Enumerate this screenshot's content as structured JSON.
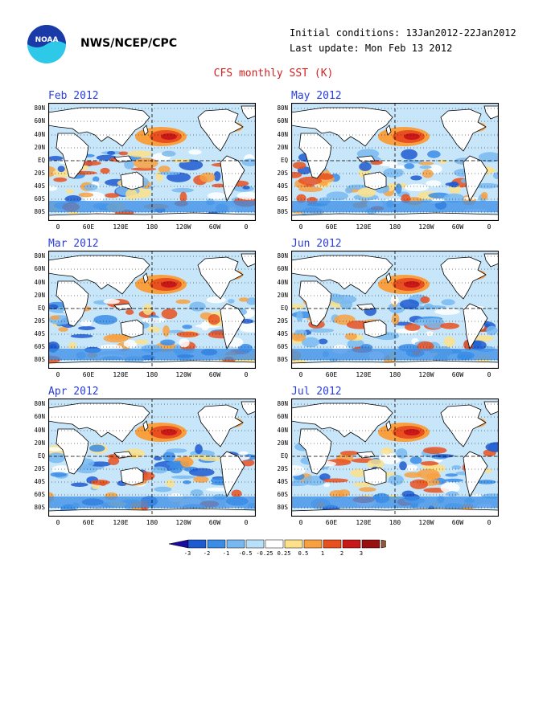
{
  "header": {
    "agency": "NWS/NCEP/CPC",
    "initial_conditions": "Initial conditions: 13Jan2012-22Jan2012",
    "last_update": "Last update: Mon Feb 13 2012",
    "title": "CFS monthly SST (K)"
  },
  "logo": {
    "text": "NOAA"
  },
  "panels": [
    {
      "label": "Feb 2012"
    },
    {
      "label": "May 2012"
    },
    {
      "label": "Mar 2012"
    },
    {
      "label": "Jun 2012"
    },
    {
      "label": "Apr 2012"
    },
    {
      "label": "Jul 2012"
    }
  ],
  "lat_labels": [
    "80N",
    "60N",
    "40N",
    "20N",
    "EQ",
    "20S",
    "40S",
    "60S",
    "80S"
  ],
  "lon_labels": [
    "0",
    "60E",
    "120E",
    "180",
    "120W",
    "60W",
    "0"
  ],
  "colorbar": {
    "ticks": [
      "-3",
      "-2",
      "-1",
      "-0.5",
      "-0.25",
      "0.25",
      "0.5",
      "1",
      "2",
      "3"
    ],
    "colors": [
      "#1a0aa0",
      "#1e5ad0",
      "#3a8ce6",
      "#78b8f0",
      "#b8e0f8",
      "#ffffff",
      "#fce08a",
      "#f8a040",
      "#e85020",
      "#c81818",
      "#981010",
      "#8a5a3a"
    ]
  },
  "colors": {
    "title": "#d62020",
    "panel_label": "#2a3de0"
  }
}
